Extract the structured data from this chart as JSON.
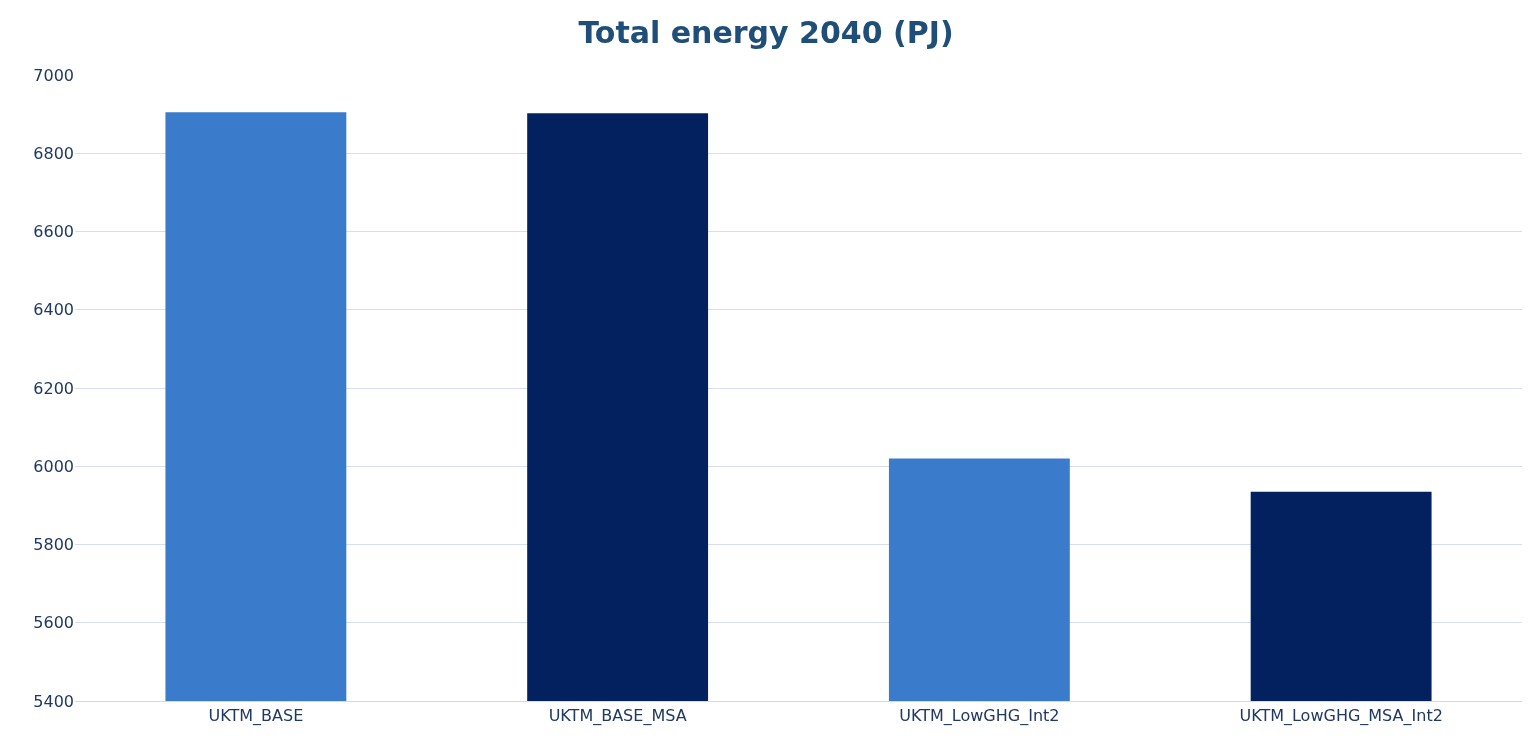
{
  "chart_data": {
    "type": "bar",
    "title": "Total energy 2040 (PJ)",
    "categories": [
      "UKTM_BASE",
      "UKTM_BASE_MSA",
      "UKTM_LowGHG_Int2",
      "UKTM_LowGHG_MSA_Int2"
    ],
    "values": [
      6905,
      6902,
      6020,
      5935
    ],
    "colors": [
      "#3a7bcc",
      "#03215f",
      "#3a7bcc",
      "#03215f"
    ],
    "ylim": [
      5400,
      7000
    ],
    "yticks": [
      5400,
      5600,
      5800,
      6000,
      6200,
      6400,
      6600,
      6800,
      7000
    ],
    "grid": "y",
    "legend": false
  }
}
